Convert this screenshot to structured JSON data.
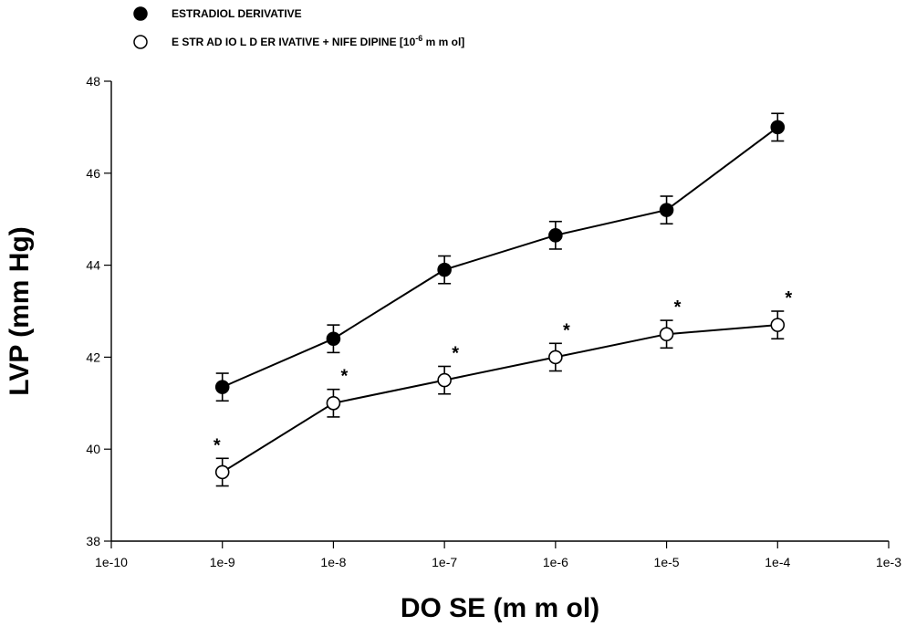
{
  "chart_data": {
    "type": "line",
    "xlabel": "DO SE (m m ol)",
    "ylabel": "LVP (mm Hg)",
    "x_scale": "log",
    "xlim": [
      1e-10,
      0.001
    ],
    "ylim": [
      38,
      48
    ],
    "x_tick_values": [
      1e-10,
      1e-09,
      1e-08,
      1e-07,
      1e-06,
      1e-05,
      0.0001,
      0.001
    ],
    "x_tick_labels": [
      "1e-10",
      "1e-9",
      "1e-8",
      "1e-7",
      "1e-6",
      "1e-5",
      "1e-4",
      "1e-3"
    ],
    "y_tick_values": [
      38,
      40,
      42,
      44,
      46,
      48
    ],
    "y_tick_labels": [
      "38",
      "40",
      "42",
      "44",
      "46",
      "48"
    ],
    "x": [
      1e-09,
      1e-08,
      1e-07,
      1e-06,
      1e-05,
      0.0001
    ],
    "legend_position": "top-left",
    "significance_marker": "*",
    "series": [
      {
        "name": "ESTRADIOL DERIVATIVE",
        "marker": "filled-circle",
        "color": "#000000",
        "values": [
          41.35,
          42.4,
          43.9,
          44.65,
          45.2,
          47.0
        ],
        "error": [
          0.3,
          0.3,
          0.3,
          0.3,
          0.3,
          0.3
        ],
        "significant": [
          false,
          false,
          false,
          false,
          false,
          false
        ]
      },
      {
        "name": "E STR AD IO L D ER IVATIVE + NIFE DIPINE [10",
        "name_superscript": "-6",
        "name_suffix": " m m ol]",
        "marker": "open-circle",
        "color": "#000000",
        "values": [
          39.5,
          41.0,
          41.5,
          42.0,
          42.5,
          42.7
        ],
        "error": [
          0.3,
          0.3,
          0.3,
          0.3,
          0.3,
          0.3
        ],
        "significant": [
          true,
          true,
          true,
          true,
          true,
          true
        ]
      }
    ]
  }
}
